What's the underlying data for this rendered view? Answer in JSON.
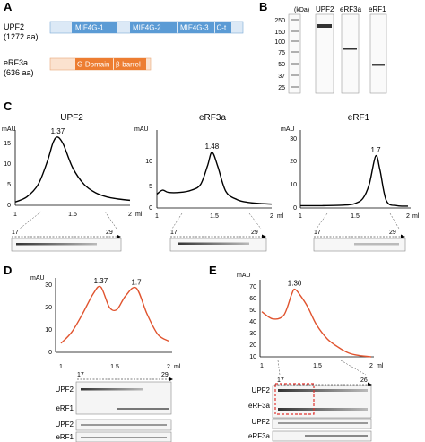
{
  "panels": {
    "A": {
      "label": "A",
      "upf2": {
        "name": "UPF2",
        "aa": "(1272 aa)",
        "domains": [
          "MIF4G-1",
          "MIF4G-2",
          "MIF4G-3",
          "C-t"
        ],
        "color": "#5b9bd5"
      },
      "erf3a": {
        "name": "eRF3a",
        "aa": "(636 aa)",
        "domains": [
          "G-Domain",
          "β-barrel"
        ],
        "color": "#ed7d31"
      }
    },
    "B": {
      "label": "B",
      "unit": "(kDa)",
      "ladder": [
        "250",
        "150",
        "100",
        "75",
        "50",
        "37",
        "25"
      ],
      "lanes": [
        "UPF2",
        "eRF3a",
        "eRF1"
      ]
    },
    "C": {
      "label": "C",
      "charts": [
        {
          "title": "UPF2",
          "ylabel": "mAU",
          "peak": "1.37",
          "xticks": [
            "1",
            "1.5",
            "2"
          ],
          "yticks": [
            "0",
            "5",
            "10",
            "15"
          ],
          "xunit": "ml",
          "fractions": [
            "17",
            "29"
          ]
        },
        {
          "title": "eRF3a",
          "ylabel": "mAU",
          "peak": "1.48",
          "xticks": [
            "1",
            "1.5",
            "2"
          ],
          "yticks": [
            "0",
            "5",
            "10"
          ],
          "xunit": "ml",
          "fractions": [
            "17",
            "29"
          ]
        },
        {
          "title": "eRF1",
          "ylabel": "mAU",
          "peak": "1.7",
          "xticks": [
            "1",
            "1.5",
            "2"
          ],
          "yticks": [
            "0",
            "10",
            "20",
            "30"
          ],
          "xunit": "ml",
          "fractions": [
            "17",
            "29"
          ]
        }
      ]
    },
    "D": {
      "label": "D",
      "ylabel": "mAU",
      "peaks": [
        "1.37",
        "1.7"
      ],
      "yticks": [
        "0",
        "10",
        "20",
        "30"
      ],
      "xticks": [
        "1",
        "1.5",
        "2"
      ],
      "xunit": "ml",
      "fractions": [
        "17",
        "29"
      ],
      "gel_labels": [
        "UPF2",
        "eRF1",
        "UPF2",
        "eRF1"
      ]
    },
    "E": {
      "label": "E",
      "ylabel": "mAU",
      "peak": "1.30",
      "yticks": [
        "10",
        "20",
        "30",
        "40",
        "50",
        "60",
        "70"
      ],
      "xticks": [
        "1",
        "1.5",
        "2"
      ],
      "xunit": "ml",
      "fractions": [
        "17",
        "26"
      ],
      "gel_labels": [
        "UPF2",
        "eRF3a",
        "UPF2",
        "eRF3a"
      ]
    }
  },
  "chart_data": [
    {
      "type": "line",
      "title": "UPF2",
      "xlabel": "ml",
      "ylabel": "mAU",
      "xlim": [
        1,
        2
      ],
      "ylim": [
        0,
        18
      ],
      "series": [
        {
          "x": [
            1.0,
            1.1,
            1.2,
            1.28,
            1.33,
            1.37,
            1.42,
            1.5,
            1.6,
            1.7,
            1.8,
            1.9,
            2.0
          ],
          "y": [
            0.8,
            2.0,
            5.0,
            10.5,
            15.0,
            16.3,
            14.5,
            9.0,
            5.0,
            3.0,
            2.0,
            1.5,
            1.2
          ]
        }
      ]
    },
    {
      "type": "line",
      "title": "eRF3a",
      "xlabel": "ml",
      "ylabel": "mAU",
      "xlim": [
        1,
        2
      ],
      "ylim": [
        0,
        14
      ],
      "series": [
        {
          "x": [
            1.0,
            1.05,
            1.1,
            1.2,
            1.3,
            1.38,
            1.44,
            1.48,
            1.53,
            1.6,
            1.7,
            1.8,
            1.9,
            2.0
          ],
          "y": [
            2.5,
            3.2,
            2.8,
            2.8,
            3.2,
            4.2,
            7.5,
            10.0,
            7.5,
            3.0,
            1.5,
            1.0,
            0.8,
            0.7
          ]
        }
      ]
    },
    {
      "type": "line",
      "title": "eRF1",
      "xlabel": "ml",
      "ylabel": "mAU",
      "xlim": [
        1,
        2
      ],
      "ylim": [
        0,
        33
      ],
      "series": [
        {
          "x": [
            1.0,
            1.2,
            1.4,
            1.5,
            1.58,
            1.64,
            1.7,
            1.74,
            1.8,
            1.9,
            2.0
          ],
          "y": [
            1.0,
            1.0,
            1.2,
            1.8,
            4.0,
            10.0,
            22.0,
            16.0,
            3.0,
            1.0,
            0.8
          ]
        }
      ]
    },
    {
      "type": "line",
      "title": "",
      "xlabel": "ml",
      "ylabel": "mAU",
      "xlim": [
        1,
        2
      ],
      "ylim": [
        0,
        33
      ],
      "series": [
        {
          "x": [
            1.0,
            1.1,
            1.2,
            1.3,
            1.37,
            1.45,
            1.52,
            1.6,
            1.7,
            1.8,
            1.9,
            2.0
          ],
          "y": [
            4.0,
            9.0,
            17.0,
            26.0,
            29.0,
            20.0,
            19.0,
            25.0,
            28.5,
            17.0,
            8.0,
            5.0
          ]
        }
      ]
    },
    {
      "type": "line",
      "title": "",
      "xlabel": "ml",
      "ylabel": "mAU",
      "xlim": [
        1,
        2
      ],
      "ylim": [
        10,
        75
      ],
      "series": [
        {
          "x": [
            1.0,
            1.1,
            1.2,
            1.27,
            1.3,
            1.35,
            1.42,
            1.5,
            1.6,
            1.7,
            1.8,
            1.9,
            2.0
          ],
          "y": [
            48.0,
            42.0,
            45.0,
            62.0,
            67.0,
            62.0,
            52.0,
            37.0,
            25.0,
            18.0,
            13.0,
            11.0,
            10.0
          ]
        }
      ]
    }
  ]
}
